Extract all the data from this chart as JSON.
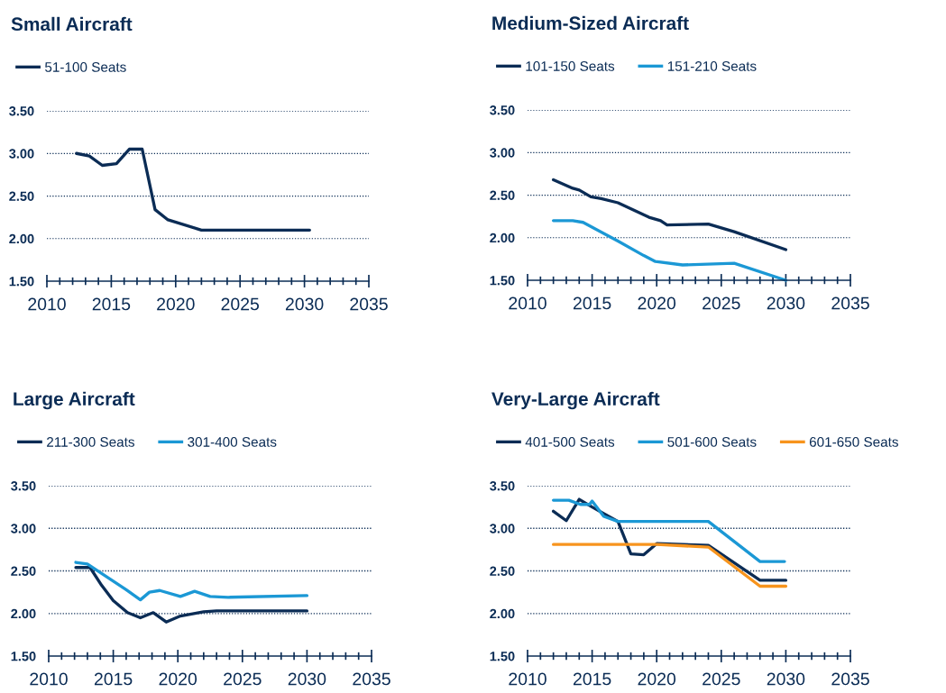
{
  "chart_data": [
    {
      "type": "line",
      "title": "Small Aircraft",
      "xlim": [
        2010,
        2035
      ],
      "xticks": [
        2010,
        2015,
        2020,
        2025,
        2030,
        2035
      ],
      "ylim": [
        1.5,
        3.5
      ],
      "yticks": [
        {
          "value": 1.5,
          "label": "1.50"
        },
        {
          "value": 2,
          "label": "2.00"
        },
        {
          "value": 2.5,
          "label": "2.50"
        },
        {
          "value": 3,
          "label": "3.00"
        },
        {
          "value": 3.5,
          "label": "3.50"
        }
      ],
      "grid": "y",
      "legend": "top left",
      "marker": "none",
      "line_style": "solid",
      "series": [
        {
          "name": "51-100 Seats",
          "color": "#0b2c55",
          "x": [
            2012.3,
            2013.3,
            2014.3,
            2015.4,
            2016.4,
            2017.4,
            2018.4,
            2019.4,
            2022.0,
            2030.4
          ],
          "values": [
            3.0,
            2.97,
            2.86,
            2.88,
            3.05,
            3.05,
            2.34,
            2.22,
            2.1,
            2.1
          ]
        }
      ]
    },
    {
      "type": "line",
      "title": "Medium-Sized Aircraft",
      "xlim": [
        2010,
        2035
      ],
      "xticks": [
        2010,
        2015,
        2020,
        2025,
        2030,
        2035
      ],
      "ylim": [
        1.5,
        3.5
      ],
      "yticks": [
        {
          "value": 1.5,
          "label": "1.50"
        },
        {
          "value": 2,
          "label": "2.00"
        },
        {
          "value": 2.5,
          "label": "2.50"
        },
        {
          "value": 3,
          "label": "3.00"
        },
        {
          "value": 3.5,
          "label": "3.50"
        }
      ],
      "grid": "y",
      "legend": "top left",
      "marker": "none",
      "line_style": "solid",
      "series": [
        {
          "name": "101-150 Seats",
          "color": "#0b2c55",
          "x": [
            2012.0,
            2013.5,
            2014.0,
            2014.9,
            2015.7,
            2017.0,
            2019.4,
            2020.3,
            2020.8,
            2024.0,
            2026.0,
            2030.0
          ],
          "values": [
            2.68,
            2.58,
            2.56,
            2.48,
            2.46,
            2.41,
            2.24,
            2.2,
            2.15,
            2.16,
            2.07,
            1.86
          ]
        },
        {
          "name": "151-210 Seats",
          "color": "#1b98d5",
          "x": [
            2012.0,
            2013.5,
            2014.3,
            2017.0,
            2019.0,
            2019.9,
            2022.0,
            2026.0,
            2030.0
          ],
          "values": [
            2.2,
            2.2,
            2.18,
            1.96,
            1.79,
            1.72,
            1.68,
            1.7,
            1.5
          ]
        }
      ]
    },
    {
      "type": "line",
      "title": "Large Aircraft",
      "xlim": [
        2010,
        2035
      ],
      "xticks": [
        2010,
        2015,
        2020,
        2025,
        2030,
        2035
      ],
      "ylim": [
        1.5,
        3.5
      ],
      "yticks": [
        {
          "value": 1.5,
          "label": "1.50"
        },
        {
          "value": 2,
          "label": "2.00"
        },
        {
          "value": 2.5,
          "label": "2.50"
        },
        {
          "value": 3,
          "label": "3.00"
        },
        {
          "value": 3.5,
          "label": "3.50"
        }
      ],
      "grid": "y",
      "legend": "top left",
      "marker": "none",
      "line_style": "solid",
      "series": [
        {
          "name": "211-300 Seats",
          "color": "#0b2c55",
          "x": [
            2012.1,
            2013.2,
            2014.1,
            2015.0,
            2016.1,
            2017.1,
            2018.1,
            2019.1,
            2020.2,
            2022.0,
            2023.0,
            2030.0
          ],
          "values": [
            2.54,
            2.54,
            2.33,
            2.15,
            2.01,
            1.95,
            2.01,
            1.9,
            1.97,
            2.02,
            2.03,
            2.03
          ]
        },
        {
          "name": "301-400 Seats",
          "color": "#1b98d5",
          "x": [
            2012.1,
            2013.0,
            2014.1,
            2016.0,
            2017.1,
            2017.8,
            2018.6,
            2020.2,
            2021.3,
            2022.5,
            2023.9,
            2030.0
          ],
          "values": [
            2.6,
            2.58,
            2.47,
            2.28,
            2.16,
            2.25,
            2.27,
            2.2,
            2.26,
            2.2,
            2.19,
            2.21
          ]
        }
      ]
    },
    {
      "type": "line",
      "title": "Very-Large Aircraft",
      "xlim": [
        2010,
        2035
      ],
      "xticks": [
        2010,
        2015,
        2020,
        2025,
        2030,
        2035
      ],
      "ylim": [
        1.5,
        3.5
      ],
      "yticks": [
        {
          "value": 1.5,
          "label": "1.50"
        },
        {
          "value": 2,
          "label": "2.00"
        },
        {
          "value": 2.5,
          "label": "2.50"
        },
        {
          "value": 3,
          "label": "3.00"
        },
        {
          "value": 3.5,
          "label": "3.50"
        }
      ],
      "grid": "y",
      "legend": "top left",
      "marker": "none",
      "line_style": "solid",
      "series": [
        {
          "name": "401-500 Seats",
          "color": "#0b2c55",
          "x": [
            2012.0,
            2013.0,
            2014.0,
            2015.0,
            2017.0,
            2018.0,
            2019.0,
            2020.0,
            2024.0,
            2028.0,
            2030.0
          ],
          "values": [
            3.2,
            3.09,
            3.34,
            3.25,
            3.08,
            2.7,
            2.69,
            2.82,
            2.8,
            2.39,
            2.39
          ]
        },
        {
          "name": "501-600 Seats",
          "color": "#1b98d5",
          "x": [
            2012.0,
            2013.2,
            2014.1,
            2014.8,
            2015.0,
            2015.9,
            2017.0,
            2024.0,
            2028.0,
            2029.9
          ],
          "values": [
            3.33,
            3.33,
            3.28,
            3.28,
            3.32,
            3.14,
            3.08,
            3.08,
            2.61,
            2.61
          ]
        },
        {
          "name": "601-650 Seats",
          "color": "#f7941d",
          "x": [
            2012.0,
            2020.0,
            2024.0,
            2028.0,
            2030.0
          ],
          "values": [
            2.81,
            2.81,
            2.78,
            2.32,
            2.32
          ]
        }
      ]
    }
  ]
}
